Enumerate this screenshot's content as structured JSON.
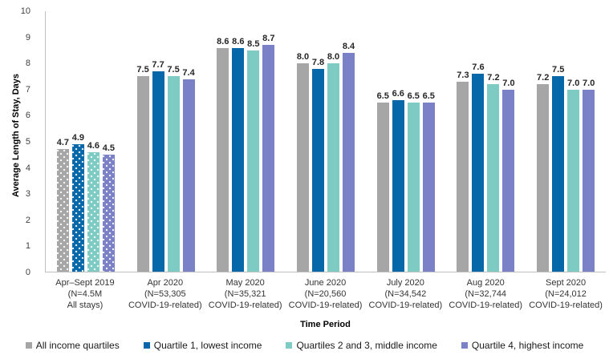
{
  "colors": {
    "axis_line": "#bfbfbf",
    "tick_text": "#404040",
    "value_label_text": "#262626"
  },
  "chart_data": {
    "type": "bar",
    "title": "",
    "ylabel": "Average Length of Stay, Days",
    "xlabel": "Time Period",
    "ylim": [
      0,
      10
    ],
    "yticks": [
      0,
      1,
      2,
      3,
      4,
      5,
      6,
      7,
      8,
      9,
      10
    ],
    "grid": false,
    "legend_position": "bottom",
    "patterned_group_index": 0,
    "categories": [
      [
        "Apr–Sept 2019",
        "(N=4.5M",
        "All stays)"
      ],
      [
        "Apr 2020",
        "(N=53,305",
        "COVID-19-related)"
      ],
      [
        "May 2020",
        "(N=35,321",
        "COVID-19-related)"
      ],
      [
        "June 2020",
        "(N=20,560",
        "COVID-19-related)"
      ],
      [
        "July 2020",
        "(N=34,542",
        "COVID-19-related)"
      ],
      [
        "Aug 2020",
        "(N=32,744",
        "COVID-19-related)"
      ],
      [
        "Sept 2020",
        "(N=24,012",
        "COVID-19-related)"
      ]
    ],
    "series": [
      {
        "name": "All income quartiles",
        "color": "#a6a6a6",
        "values": [
          4.7,
          7.5,
          8.6,
          8.0,
          6.5,
          7.3,
          7.2
        ]
      },
      {
        "name": "Quartile 1, lowest income",
        "color": "#0768a9",
        "values": [
          4.9,
          7.7,
          8.6,
          7.8,
          6.6,
          7.6,
          7.5
        ]
      },
      {
        "name": "Quartiles 2 and 3, middle income",
        "color": "#7dcbc3",
        "values": [
          4.6,
          7.5,
          8.5,
          8.0,
          6.5,
          7.2,
          7.0
        ]
      },
      {
        "name": "Quartile 4, highest income",
        "color": "#7a81c6",
        "values": [
          4.5,
          7.4,
          8.7,
          8.4,
          6.5,
          7.0,
          7.0
        ]
      }
    ]
  }
}
